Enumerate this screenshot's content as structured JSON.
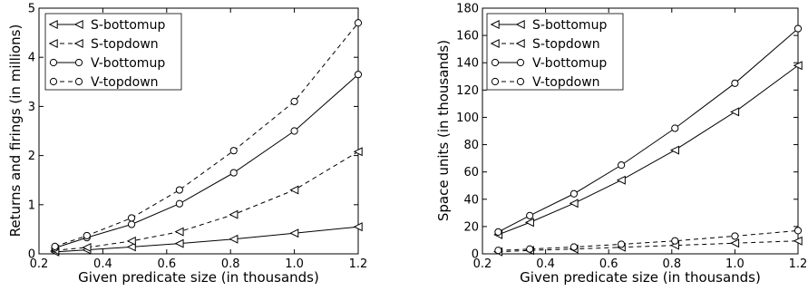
{
  "chart_data": [
    {
      "type": "line",
      "title": "",
      "xlabel": "Given predicate size (in thousands)",
      "ylabel": "Returns and firings (in millions)",
      "xlim": [
        0.2,
        1.2
      ],
      "ylim": [
        0,
        5
      ],
      "x_ticks": [
        "0.2",
        "0.4",
        "0.6",
        "0.8",
        "1.0",
        "1.2"
      ],
      "y_ticks": [
        "0",
        "1",
        "2",
        "3",
        "4",
        "5"
      ],
      "grid": false,
      "legend_position": "top-left",
      "x": [
        0.25,
        0.35,
        0.49,
        0.64,
        0.81,
        1.0,
        1.2
      ],
      "series": [
        {
          "name": "S-bottomup",
          "line": "solid",
          "marker": "triangle-left",
          "values": [
            0.04,
            0.08,
            0.14,
            0.21,
            0.3,
            0.42,
            0.55
          ]
        },
        {
          "name": "S-topdown",
          "line": "dashed",
          "marker": "triangle-left",
          "values": [
            0.07,
            0.13,
            0.26,
            0.45,
            0.8,
            1.3,
            2.08
          ]
        },
        {
          "name": "V-bottomup",
          "line": "solid",
          "marker": "circle",
          "values": [
            0.12,
            0.33,
            0.6,
            1.02,
            1.65,
            2.5,
            3.65
          ]
        },
        {
          "name": "V-topdown",
          "line": "dashed",
          "marker": "circle",
          "values": [
            0.15,
            0.37,
            0.73,
            1.3,
            2.1,
            3.1,
            4.7
          ]
        }
      ]
    },
    {
      "type": "line",
      "title": "",
      "xlabel": "Given predicate size (in thousands)",
      "ylabel": "Space units (in thousands)",
      "xlim": [
        0.2,
        1.2
      ],
      "ylim": [
        0,
        180
      ],
      "x_ticks": [
        "0.2",
        "0.4",
        "0.6",
        "0.8",
        "1.0",
        "1.2"
      ],
      "y_ticks": [
        "0",
        "20",
        "40",
        "60",
        "80",
        "100",
        "120",
        "140",
        "160",
        "180"
      ],
      "grid": false,
      "legend_position": "top-left",
      "x": [
        0.25,
        0.35,
        0.49,
        0.64,
        0.81,
        1.0,
        1.2
      ],
      "series": [
        {
          "name": "S-bottomup",
          "line": "solid",
          "marker": "triangle-left",
          "values": [
            14,
            23,
            37,
            54,
            76,
            104,
            138
          ]
        },
        {
          "name": "S-topdown",
          "line": "dashed",
          "marker": "triangle-left",
          "values": [
            1.5,
            2.5,
            3.5,
            4.8,
            6.2,
            7.8,
            9.5
          ]
        },
        {
          "name": "V-bottomup",
          "line": "solid",
          "marker": "circle",
          "values": [
            16,
            28,
            44,
            65,
            92,
            125,
            165
          ]
        },
        {
          "name": "V-topdown",
          "line": "dashed",
          "marker": "circle",
          "values": [
            2.5,
            3.5,
            5,
            7,
            9.5,
            13,
            17
          ]
        }
      ]
    }
  ]
}
